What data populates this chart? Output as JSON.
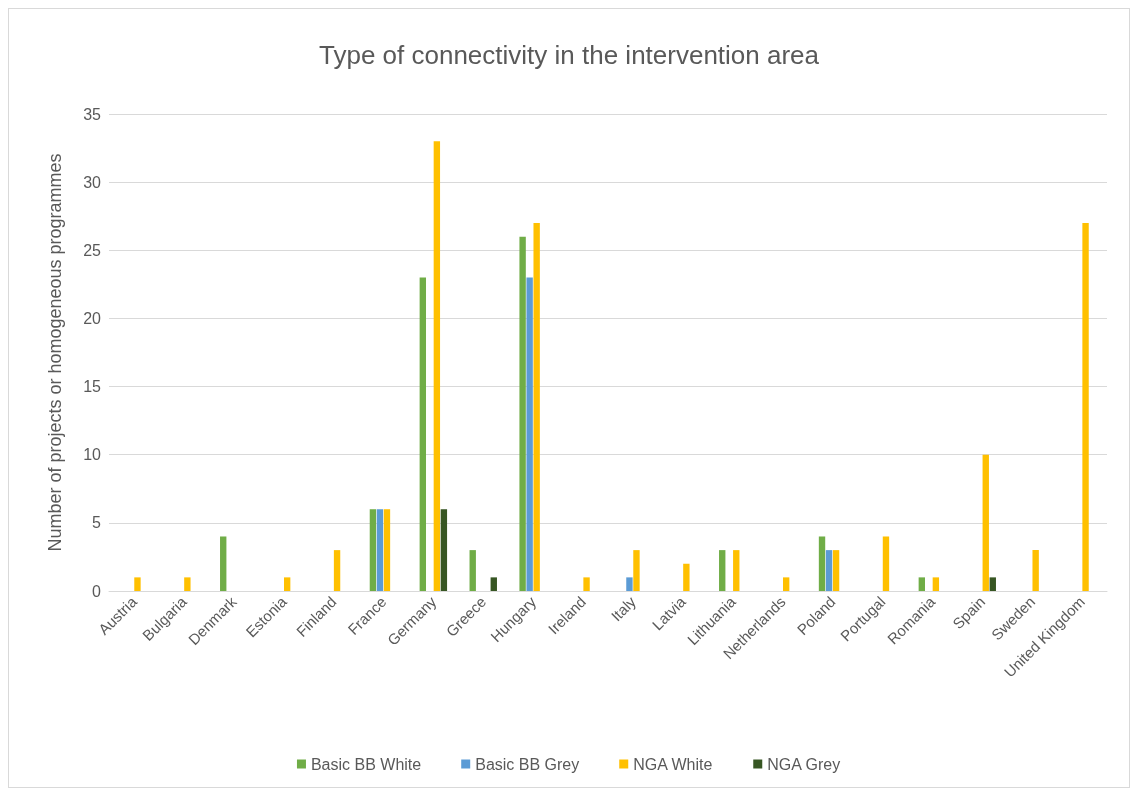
{
  "chart_data": {
    "type": "bar",
    "title": "Type of connectivity in the intervention area",
    "ylabel": "Number of projects or homogeneous programmes",
    "categories": [
      "Austria",
      "Bulgaria",
      "Denmark",
      "Estonia",
      "Finland",
      "France",
      "Germany",
      "Greece",
      "Hungary",
      "Ireland",
      "Italy",
      "Latvia",
      "Lithuania",
      "Netherlands",
      "Poland",
      "Portugal",
      "Romania",
      "Spain",
      "Sweden",
      "United Kingdom"
    ],
    "series": [
      {
        "name": "Basic BB White",
        "color": "#70ad47",
        "values": [
          0,
          0,
          4,
          0,
          0,
          6,
          23,
          3,
          26,
          0,
          0,
          0,
          3,
          0,
          4,
          0,
          1,
          0,
          0,
          0
        ]
      },
      {
        "name": "Basic BB Grey",
        "color": "#5b9bd5",
        "values": [
          0,
          0,
          0,
          0,
          0,
          6,
          0,
          0,
          23,
          0,
          1,
          0,
          0,
          0,
          3,
          0,
          0,
          0,
          0,
          0
        ]
      },
      {
        "name": "NGA White",
        "color": "#ffc000",
        "values": [
          1,
          1,
          0,
          1,
          3,
          6,
          33,
          0,
          27,
          1,
          3,
          2,
          3,
          1,
          3,
          4,
          1,
          10,
          3,
          27
        ]
      },
      {
        "name": "NGA Grey",
        "color": "#375623",
        "values": [
          0,
          0,
          0,
          0,
          0,
          0,
          6,
          1,
          0,
          0,
          0,
          0,
          0,
          0,
          0,
          0,
          0,
          1,
          0,
          0
        ]
      }
    ],
    "ylim": [
      0,
      35
    ],
    "yticks": [
      0,
      5,
      10,
      15,
      20,
      25,
      30,
      35
    ],
    "grid": "y",
    "legend": "bottom"
  }
}
